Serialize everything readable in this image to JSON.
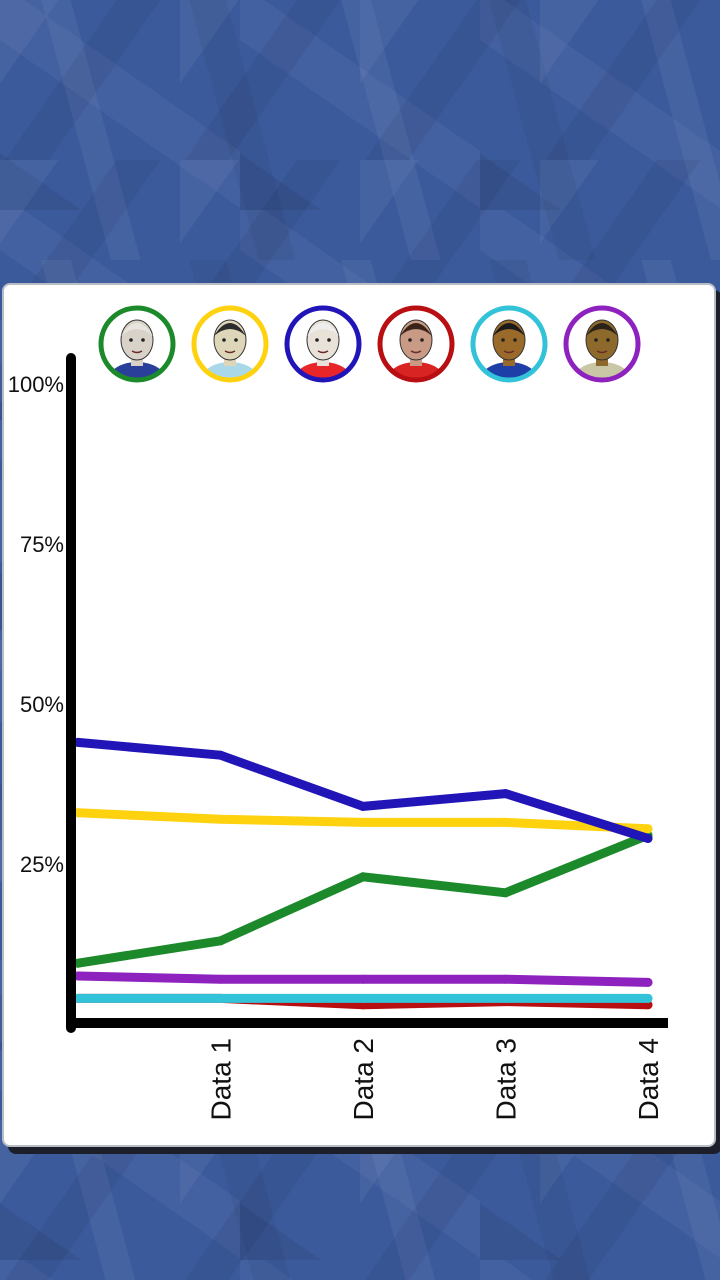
{
  "chart_data": {
    "type": "line",
    "categories": [
      "",
      "Data 1",
      "Data 2",
      "Data 3",
      "Data 4"
    ],
    "y_ticks": [
      "100%",
      "75%",
      "50%",
      "25%"
    ],
    "y_tick_values": [
      100,
      75,
      50,
      25
    ],
    "ylim": [
      0,
      100
    ],
    "grid": false,
    "legend": "top (avatar circles)",
    "series": [
      {
        "color": "#2215b8",
        "icon": "candidate-1-portrait-icon",
        "values": [
          44,
          42,
          34,
          36,
          29
        ]
      },
      {
        "color": "#ffd20f",
        "icon": "candidate-2-portrait-icon",
        "values": [
          33,
          32,
          31.5,
          31.5,
          30.5
        ]
      },
      {
        "color": "#1c8a2a",
        "icon": "candidate-3-portrait-icon",
        "values": [
          9.5,
          13,
          23,
          20.5,
          29.5
        ]
      },
      {
        "color": "#8e22bf",
        "icon": "candidate-4-portrait-icon",
        "values": [
          7.5,
          7,
          7,
          7,
          6.5
        ]
      },
      {
        "color": "#32c3d8",
        "icon": "candidate-5-portrait-icon",
        "values": [
          4,
          4,
          4,
          4,
          4
        ]
      },
      {
        "color": "#b80f12",
        "icon": "candidate-6-portrait-icon",
        "values": [
          4,
          4,
          3,
          3.5,
          3
        ]
      }
    ],
    "legend_items": [
      {
        "ring_color": "#1c8a2a",
        "icon": "candidate-green-portrait-icon",
        "shirt": "#2a3f9a",
        "skin": "#d9d2c8",
        "hair": "#e8e4df"
      },
      {
        "ring_color": "#ffd20f",
        "icon": "candidate-yellow-portrait-icon",
        "shirt": "#a9d9e8",
        "skin": "#ddd6b8",
        "hair": "#2b2b2b"
      },
      {
        "ring_color": "#2215b8",
        "icon": "candidate-blue-portrait-icon",
        "shirt": "#e8262a",
        "skin": "#e8e2d8",
        "hair": "#eeeeee"
      },
      {
        "ring_color": "#b80f12",
        "icon": "candidate-red-portrait-icon",
        "shirt": "#d92424",
        "skin": "#c99a86",
        "hair": "#3a2418"
      },
      {
        "ring_color": "#32c3d8",
        "icon": "candidate-cyan-portrait-icon",
        "shirt": "#1f3fa8",
        "skin": "#9a6a2a",
        "hair": "#1b1b1b"
      },
      {
        "ring_color": "#8e22bf",
        "icon": "candidate-purple-portrait-icon",
        "shirt": "#c9c7a6",
        "skin": "#8d6a2c",
        "hair": "#2a2218"
      }
    ]
  }
}
